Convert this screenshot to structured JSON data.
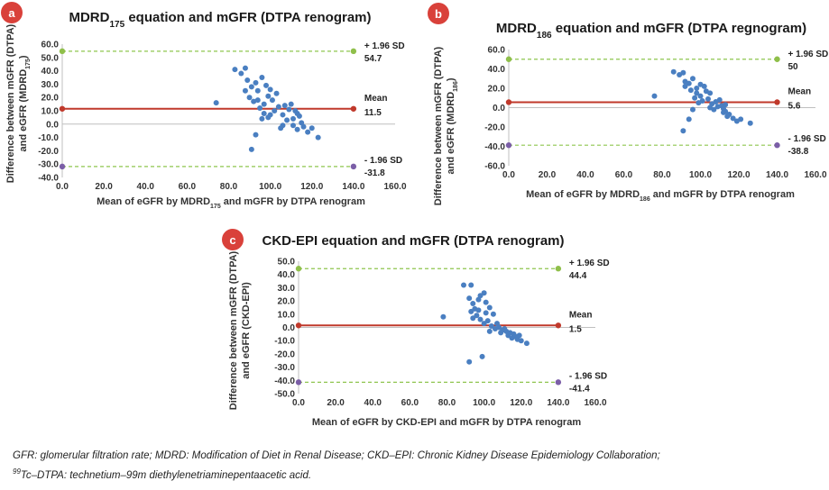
{
  "colors": {
    "mean_line": "#c0392b",
    "upper_line": "#8fc54f",
    "lower_line": "#8fc54f",
    "upper_dot": "#8fbf4a",
    "lower_dot": "#7b5ea7",
    "mean_dot": "#c0392b",
    "points": "#4a7fc1",
    "badge": "#d9413a",
    "zero_line": "#bfbfbf"
  },
  "chart_data": [
    {
      "id": "a",
      "badge": "a",
      "type": "scatter",
      "title_main": "MDRD",
      "title_sub": "175",
      "title_rest": " equation and mGFR (DTPA renogram)",
      "ylabel_line1": "Difference between mGFR (DTPA)",
      "ylabel_line2_main": "and eGFR (MDRD",
      "ylabel_line2_sub": "175",
      "ylabel_line2_rest": ")",
      "xlabel_main": "Mean of eGFR by MDRD",
      "xlabel_sub": "175",
      "xlabel_rest": " and mGFR by DTPA renogram",
      "xlim": [
        0,
        160
      ],
      "ylim": [
        -40,
        60
      ],
      "x_ticks": [
        "0.0",
        "20.0",
        "40.0",
        "60.0",
        "80.0",
        "100.0",
        "120.0",
        "140.0",
        "160.0"
      ],
      "y_ticks": [
        "-40.0",
        "-30.0",
        "-20.0",
        "-10.0",
        "0.0",
        "10.0",
        "20.0",
        "30.0",
        "40.0",
        "50.0",
        "60.0"
      ],
      "mean": 11.5,
      "upper": 54.7,
      "lower": -31.8,
      "line_x": [
        0,
        140
      ],
      "upper_label": "+ 1.96 SD",
      "upper_value": "54.7",
      "mean_label": "Mean",
      "mean_value": "11.5",
      "lower_label": "- 1.96 SD",
      "lower_value": "-31.8",
      "points": [
        [
          74,
          16
        ],
        [
          83,
          41
        ],
        [
          86,
          38
        ],
        [
          88,
          42
        ],
        [
          89,
          33
        ],
        [
          91,
          28
        ],
        [
          93,
          31
        ],
        [
          94,
          25
        ],
        [
          96,
          35
        ],
        [
          98,
          29
        ],
        [
          99,
          21
        ],
        [
          100,
          26
        ],
        [
          101,
          18
        ],
        [
          103,
          23
        ],
        [
          88,
          25
        ],
        [
          90,
          20
        ],
        [
          92,
          17
        ],
        [
          95,
          12
        ],
        [
          97,
          8
        ],
        [
          99,
          5
        ],
        [
          102,
          10
        ],
        [
          104,
          13
        ],
        [
          106,
          7
        ],
        [
          107,
          14
        ],
        [
          109,
          11
        ],
        [
          110,
          15
        ],
        [
          111,
          4
        ],
        [
          113,
          8
        ],
        [
          114,
          6
        ],
        [
          115,
          1
        ],
        [
          116,
          -2
        ],
        [
          118,
          -6
        ],
        [
          120,
          -3
        ],
        [
          123,
          -10
        ],
        [
          96,
          4
        ],
        [
          93,
          -8
        ],
        [
          91,
          -19
        ],
        [
          105,
          -3
        ],
        [
          108,
          3
        ],
        [
          112,
          10
        ],
        [
          100,
          7
        ],
        [
          97,
          15
        ],
        [
          94,
          18
        ],
        [
          111,
          -1
        ],
        [
          113,
          -4
        ],
        [
          106,
          -1
        ]
      ]
    },
    {
      "id": "b",
      "badge": "b",
      "type": "scatter",
      "title_main": "MDRD",
      "title_sub": "186",
      "title_rest": " equation and mGFR (DTPA regnogram)",
      "ylabel_line1": "Difference between mGFR (DTPA)",
      "ylabel_line2_main": "and eGFR (MDRD",
      "ylabel_line2_sub": "186",
      "ylabel_line2_rest": ")",
      "xlabel_main": "Mean of eGFR by MDRD",
      "xlabel_sub": "186",
      "xlabel_rest": " and mGFR by DTPA renogram",
      "xlim": [
        0,
        160
      ],
      "ylim": [
        -60,
        60
      ],
      "x_ticks": [
        "0.0",
        "20.0",
        "40.0",
        "60.0",
        "80.0",
        "100.0",
        "120.0",
        "140.0",
        "160.0"
      ],
      "y_ticks": [
        "-60.0",
        "-40.0",
        "-20.0",
        "0.0",
        "20.0",
        "40.0",
        "60.0"
      ],
      "mean": 5.6,
      "upper": 50,
      "lower": -38.8,
      "line_x": [
        0,
        140
      ],
      "upper_label": "+ 1.96 SD",
      "upper_value": "50",
      "mean_label": "Mean",
      "mean_value": "5.6",
      "lower_label": "- 1.96 SD",
      "lower_value": "-38.8",
      "points": [
        [
          76,
          12
        ],
        [
          86,
          37
        ],
        [
          89,
          34
        ],
        [
          91,
          36
        ],
        [
          92,
          27
        ],
        [
          94,
          25
        ],
        [
          96,
          30
        ],
        [
          98,
          20
        ],
        [
          100,
          24
        ],
        [
          102,
          22
        ],
        [
          103,
          17
        ],
        [
          105,
          15
        ],
        [
          92,
          22
        ],
        [
          95,
          18
        ],
        [
          97,
          10
        ],
        [
          99,
          5
        ],
        [
          101,
          7
        ],
        [
          104,
          9
        ],
        [
          106,
          4
        ],
        [
          108,
          6
        ],
        [
          110,
          8
        ],
        [
          111,
          2
        ],
        [
          112,
          -1
        ],
        [
          113,
          -4
        ],
        [
          115,
          -7
        ],
        [
          117,
          -11
        ],
        [
          119,
          -14
        ],
        [
          121,
          -12
        ],
        [
          126,
          -16
        ],
        [
          96,
          -2
        ],
        [
          94,
          -12
        ],
        [
          91,
          -24
        ],
        [
          107,
          -2
        ],
        [
          109,
          1
        ],
        [
          113,
          3
        ],
        [
          100,
          12
        ],
        [
          98,
          15
        ],
        [
          112,
          -5
        ],
        [
          114,
          -9
        ],
        [
          105,
          0
        ]
      ]
    },
    {
      "id": "c",
      "badge": "c",
      "type": "scatter",
      "title_main": "CKD-EPI equation and mGFR (DTPA renogram)",
      "title_sub": "",
      "title_rest": "",
      "ylabel_line1": "Difference between mGFR (DTPA)",
      "ylabel_line2_main": "and eGFR (CKD-EPI)",
      "ylabel_line2_sub": "",
      "ylabel_line2_rest": "",
      "xlabel_main": "Mean of eGFR by CKD-EPI and mGFR by DTPA renogram",
      "xlabel_sub": "",
      "xlabel_rest": "",
      "xlim": [
        0,
        160
      ],
      "ylim": [
        -50,
        50
      ],
      "x_ticks": [
        "0.0",
        "20.0",
        "40.0",
        "60.0",
        "80.0",
        "100.0",
        "120.0",
        "140.0",
        "160.0"
      ],
      "y_ticks": [
        "-50.0",
        "-40.0",
        "-30.0",
        "-20.0",
        "-10.0",
        "0.0",
        "10.0",
        "20.0",
        "30.0",
        "40.0",
        "50.0"
      ],
      "mean": 1.5,
      "upper": 44.4,
      "lower": -41.4,
      "line_x": [
        0,
        140
      ],
      "upper_label": "+ 1.96 SD",
      "upper_value": "44.4",
      "mean_label": "Mean",
      "mean_value": "1.5",
      "lower_label": "- 1.96 SD",
      "lower_value": "-41.4",
      "points": [
        [
          78,
          8
        ],
        [
          89,
          32
        ],
        [
          93,
          32
        ],
        [
          92,
          22
        ],
        [
          94,
          18
        ],
        [
          95,
          14
        ],
        [
          97,
          21
        ],
        [
          98,
          24
        ],
        [
          100,
          26
        ],
        [
          101,
          19
        ],
        [
          103,
          15
        ],
        [
          105,
          10
        ],
        [
          93,
          12
        ],
        [
          96,
          9
        ],
        [
          98,
          6
        ],
        [
          100,
          3
        ],
        [
          102,
          5
        ],
        [
          104,
          1
        ],
        [
          106,
          -1
        ],
        [
          108,
          0
        ],
        [
          110,
          -2
        ],
        [
          112,
          -3
        ],
        [
          113,
          -6
        ],
        [
          114,
          -4
        ],
        [
          115,
          -8
        ],
        [
          116,
          -5
        ],
        [
          117,
          -7
        ],
        [
          118,
          -9
        ],
        [
          120,
          -10
        ],
        [
          123,
          -12
        ],
        [
          103,
          -3
        ],
        [
          99,
          -22
        ],
        [
          92,
          -26
        ],
        [
          109,
          -4
        ],
        [
          111,
          -1
        ],
        [
          107,
          3
        ],
        [
          101,
          11
        ],
        [
          97,
          13
        ],
        [
          94,
          7
        ],
        [
          119,
          -6
        ]
      ]
    }
  ],
  "footnote": {
    "line1": "GFR: glomerular filtration rate; MDRD: Modification of Diet in Renal Disease; CKD–EPI: Chronic Kidney Disease Epidemiology Collaboration;",
    "line2_sup": "99",
    "line2_rest": "Tc–DTPA: technetium–99m diethylenetriaminepentaacetic acid."
  }
}
